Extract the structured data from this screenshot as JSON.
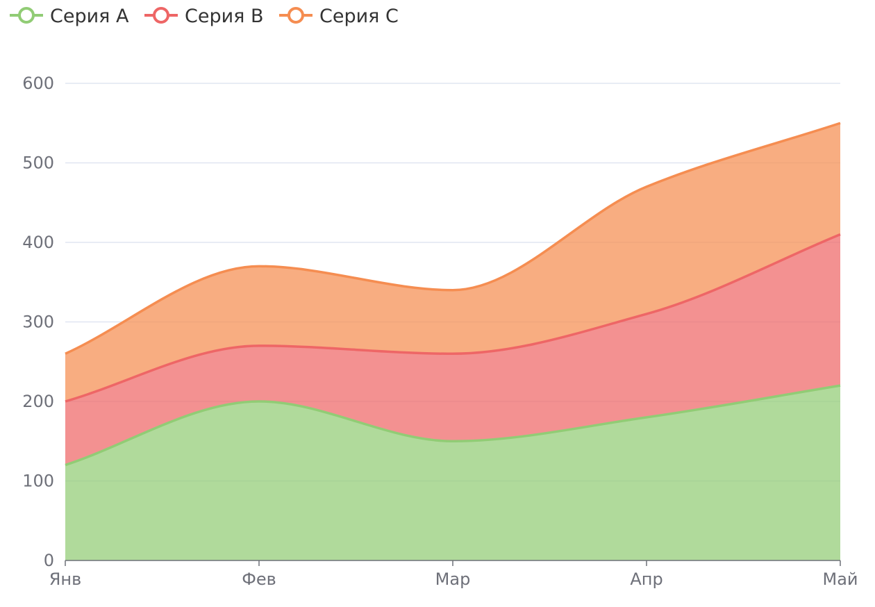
{
  "chart_data": {
    "type": "area",
    "stacked": true,
    "smooth": true,
    "categories": [
      "Янв",
      "Фев",
      "Мар",
      "Апр",
      "Май"
    ],
    "series": [
      {
        "name": "Серия A",
        "values": [
          120,
          200,
          150,
          180,
          220
        ],
        "color": "#91cc75"
      },
      {
        "name": "Серия B",
        "values": [
          80,
          70,
          110,
          130,
          190
        ],
        "color": "#ee6666"
      },
      {
        "name": "Серия C",
        "values": [
          60,
          100,
          80,
          160,
          140
        ],
        "color": "#f58d51"
      }
    ],
    "ylim": [
      0,
      600
    ],
    "yticks": [
      0,
      100,
      200,
      300,
      400,
      500,
      600
    ],
    "grid": true,
    "legend_position": "top-left",
    "colors": {
      "axis": "#6e7079",
      "grid": "#e0e6f1"
    }
  }
}
